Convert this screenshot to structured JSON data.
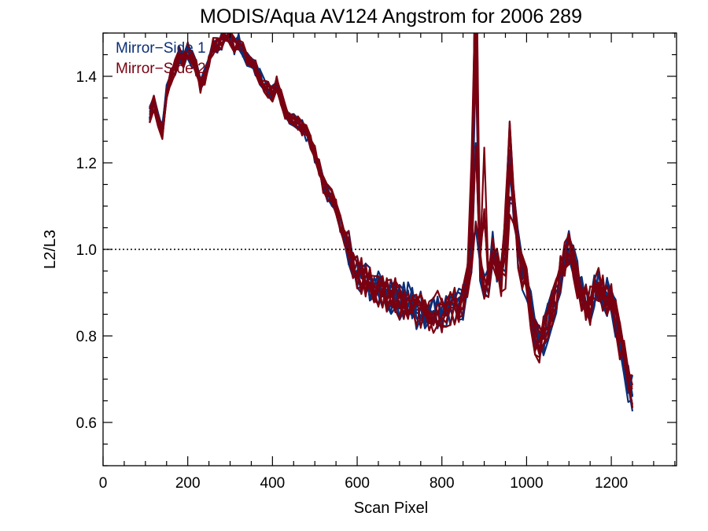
{
  "chart_data": {
    "type": "line",
    "title": "MODIS/Aqua AV124 Angstrom for 2006 289",
    "xlabel": "Scan Pixel",
    "ylabel": "L2/L3",
    "xlim": [
      0,
      1354
    ],
    "ylim": [
      0.5,
      1.5
    ],
    "xticks": [
      0,
      200,
      400,
      600,
      800,
      1000,
      1200
    ],
    "xtick_labels": [
      "0",
      "200",
      "400",
      "600",
      "800",
      "1000",
      "1200"
    ],
    "yticks": [
      0.6,
      0.8,
      1.0,
      1.2,
      1.4
    ],
    "ytick_labels": [
      "0.6",
      "0.8",
      "1.0",
      "1.2",
      "1.4"
    ],
    "reference_line": {
      "y": 1.0,
      "style": "dotted"
    },
    "legend": {
      "placement": "top-left",
      "entries": [
        "Mirror−Side 1",
        "Mirror−Side 2"
      ]
    },
    "colors": {
      "Mirror−Side 1": "#0a2f78",
      "Mirror−Side 2": "#7a0010"
    },
    "base_profile": {
      "x": [
        110,
        120,
        130,
        140,
        150,
        160,
        170,
        180,
        190,
        200,
        210,
        220,
        230,
        240,
        250,
        260,
        270,
        280,
        290,
        300,
        310,
        320,
        330,
        340,
        350,
        360,
        370,
        380,
        390,
        400,
        410,
        420,
        430,
        440,
        450,
        460,
        470,
        480,
        490,
        500,
        510,
        520,
        530,
        540,
        550,
        560,
        570,
        580,
        590,
        600,
        610,
        620,
        630,
        640,
        650,
        660,
        670,
        680,
        690,
        700,
        710,
        720,
        730,
        740,
        750,
        760,
        770,
        780,
        790,
        800,
        810,
        820,
        830,
        840,
        850,
        860,
        870,
        880,
        890,
        900,
        910,
        920,
        930,
        940,
        950,
        960,
        970,
        980,
        990,
        1000,
        1010,
        1020,
        1030,
        1040,
        1050,
        1060,
        1070,
        1080,
        1090,
        1100,
        1110,
        1120,
        1130,
        1140,
        1150,
        1160,
        1170,
        1180,
        1190,
        1200,
        1210,
        1220,
        1230,
        1240,
        1250
      ],
      "y": [
        1.31,
        1.34,
        1.3,
        1.27,
        1.36,
        1.4,
        1.42,
        1.45,
        1.44,
        1.46,
        1.44,
        1.42,
        1.38,
        1.4,
        1.44,
        1.47,
        1.47,
        1.48,
        1.5,
        1.49,
        1.47,
        1.48,
        1.46,
        1.44,
        1.43,
        1.42,
        1.4,
        1.38,
        1.37,
        1.36,
        1.38,
        1.35,
        1.32,
        1.31,
        1.3,
        1.29,
        1.28,
        1.27,
        1.25,
        1.22,
        1.19,
        1.15,
        1.13,
        1.12,
        1.1,
        1.06,
        1.03,
        1.0,
        0.97,
        0.95,
        0.94,
        0.93,
        0.92,
        0.91,
        0.91,
        0.9,
        0.9,
        0.89,
        0.89,
        0.88,
        0.88,
        0.88,
        0.87,
        0.86,
        0.86,
        0.86,
        0.85,
        0.85,
        0.86,
        0.85,
        0.85,
        0.86,
        0.87,
        0.87,
        0.88,
        0.92,
        0.98,
        1.06,
        0.97,
        0.92,
        0.93,
        1.0,
        0.96,
        0.93,
        0.95,
        1.12,
        1.1,
        1.0,
        0.95,
        0.92,
        0.86,
        0.8,
        0.78,
        0.8,
        0.83,
        0.86,
        0.89,
        0.94,
        0.98,
        1.01,
        0.97,
        0.93,
        0.9,
        0.88,
        0.87,
        0.9,
        0.92,
        0.9,
        0.89,
        0.88,
        0.84,
        0.79,
        0.75,
        0.69,
        0.67
      ]
    },
    "series": [
      {
        "name": "Mirror−Side 1",
        "count": 7
      },
      {
        "name": "Mirror−Side 2",
        "count": 7
      }
    ]
  }
}
